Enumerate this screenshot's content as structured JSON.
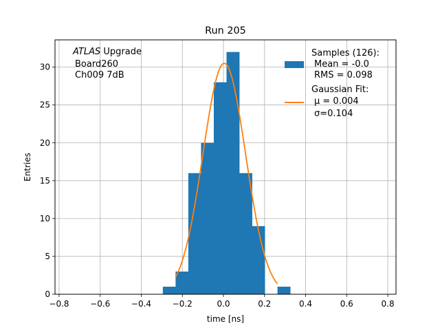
{
  "chart_data": {
    "type": "bar",
    "title": "Run 205",
    "xlabel": "time [ns]",
    "ylabel": "Entries",
    "xlim": [
      -0.82,
      0.84
    ],
    "ylim": [
      0,
      33.6
    ],
    "grid": true,
    "x_ticks": [
      -0.8,
      -0.6,
      -0.4,
      -0.2,
      0.0,
      0.2,
      0.4,
      0.6,
      0.8
    ],
    "x_tick_labels": [
      "−0.8",
      "−0.6",
      "−0.4",
      "−0.2",
      "0.0",
      "0.2",
      "0.4",
      "0.6",
      "0.8"
    ],
    "y_ticks": [
      0,
      5,
      10,
      15,
      20,
      25,
      30
    ],
    "y_tick_labels": [
      "0",
      "5",
      "10",
      "15",
      "20",
      "25",
      "30"
    ],
    "histogram": {
      "name": "Samples (126):",
      "color": "#1f77b4",
      "bins": [
        {
          "x0": -0.295,
          "x1": -0.233,
          "count": 1
        },
        {
          "x0": -0.233,
          "x1": -0.171,
          "count": 3
        },
        {
          "x0": -0.171,
          "x1": -0.109,
          "count": 16
        },
        {
          "x0": -0.109,
          "x1": -0.047,
          "count": 20
        },
        {
          "x0": -0.047,
          "x1": 0.015,
          "count": 28
        },
        {
          "x0": 0.015,
          "x1": 0.077,
          "count": 32
        },
        {
          "x0": 0.077,
          "x1": 0.139,
          "count": 16
        },
        {
          "x0": 0.139,
          "x1": 0.201,
          "count": 9
        },
        {
          "x0": 0.201,
          "x1": 0.263,
          "count": 0
        },
        {
          "x0": 0.263,
          "x1": 0.325,
          "count": 1
        }
      ]
    },
    "fit": {
      "name": "Gaussian Fit:",
      "color": "#ff7f0e",
      "mu": 0.004,
      "sigma": 0.104,
      "amplitude": 30.5,
      "x_range": [
        -0.233,
        0.263
      ]
    },
    "legend": {
      "placement": "top-right",
      "samples_line1": "Samples (126):",
      "samples_line2": "Mean = -0.0",
      "samples_line3": "RMS = 0.098",
      "fit_line1": "Gaussian Fit:",
      "fit_line2": "μ = 0.004",
      "fit_line3": "σ=0.104"
    },
    "annotation": {
      "line1_italic": "ATLAS",
      "line1_rest": " Upgrade",
      "line2": "Board260",
      "line3": "Ch009 7dB"
    }
  }
}
